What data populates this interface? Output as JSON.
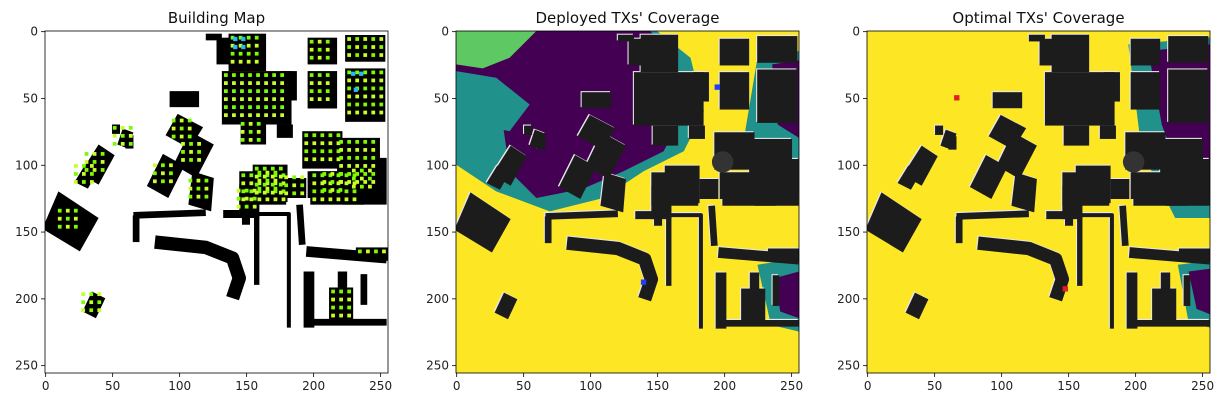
{
  "chart_data": [
    {
      "type": "heatmap",
      "title": "Building Map",
      "xlabel": "",
      "ylabel": "",
      "xlim": [
        0,
        255
      ],
      "ylim": [
        255,
        0
      ],
      "x_ticks": [
        0,
        50,
        100,
        150,
        200,
        250
      ],
      "y_ticks": [
        0,
        50,
        100,
        150,
        200,
        250
      ],
      "grid": false,
      "legend": "none",
      "background_color": "#ffffff",
      "building_color": "#000000",
      "marker_colors": [
        "#7cfc00",
        "#c8ff2a",
        "#29b6f6"
      ]
    },
    {
      "type": "heatmap",
      "title": "Deployed TXs' Coverage",
      "xlabel": "",
      "ylabel": "",
      "xlim": [
        0,
        255
      ],
      "ylim": [
        255,
        0
      ],
      "x_ticks": [
        0,
        50,
        100,
        150,
        200,
        250
      ],
      "y_ticks": [
        0,
        50,
        100,
        150,
        200,
        250
      ],
      "grid": false,
      "legend": "none",
      "colormap": "viridis",
      "coverage_colors": [
        "#440154",
        "#21918c",
        "#5ec962",
        "#fde725"
      ],
      "building_color": "#1c1c1c",
      "transmitters": [
        {
          "x": 195,
          "y": 42,
          "color": "#1f3cff"
        },
        {
          "x": 140,
          "y": 188,
          "color": "#1f3cff"
        }
      ]
    },
    {
      "type": "heatmap",
      "title": "Optimal TXs' Coverage",
      "xlabel": "",
      "ylabel": "",
      "xlim": [
        0,
        255
      ],
      "ylim": [
        255,
        0
      ],
      "x_ticks": [
        0,
        50,
        100,
        150,
        200,
        250
      ],
      "y_ticks": [
        0,
        50,
        100,
        150,
        200,
        250
      ],
      "grid": false,
      "legend": "none",
      "colormap": "viridis",
      "coverage_colors": [
        "#440154",
        "#21918c",
        "#5ec962",
        "#fde725"
      ],
      "building_color": "#1c1c1c",
      "transmitters": [
        {
          "x": 67,
          "y": 50,
          "color": "#e02020"
        },
        {
          "x": 148,
          "y": 193,
          "color": "#e02020"
        }
      ]
    }
  ]
}
